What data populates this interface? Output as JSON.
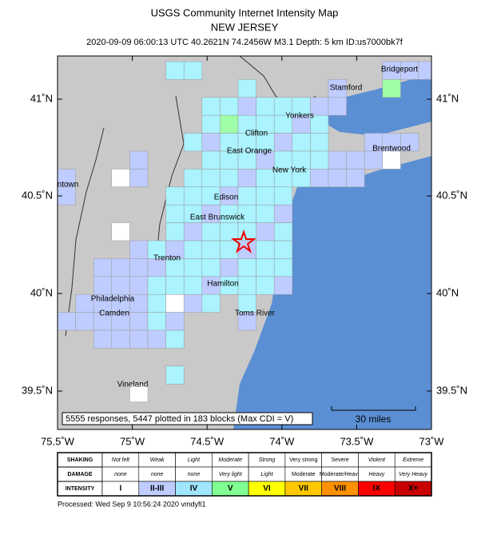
{
  "header": {
    "title": "USGS Community Internet Intensity Map",
    "region": "NEW JERSEY",
    "event": "2020-09-09 06:00:13 UTC 40.2621N 74.2456W M3.1 Depth: 5 km ID:us7000bk7f"
  },
  "map": {
    "lon_labels": [
      "75.5˚W",
      "75˚W",
      "74.5˚W",
      "74˚W",
      "73.5˚W",
      "73˚W"
    ],
    "lat_labels": [
      "41˚N",
      "40.5˚N",
      "40˚N",
      "39.5˚N"
    ],
    "places": [
      "Bridgeport",
      "Stamford",
      "Yonkers",
      "Clifton",
      "East Orange",
      "Brentwood",
      "New York",
      "ntown",
      "Edison",
      "East Brunswick",
      "Trenton",
      "Hamilton",
      "Philadelphia",
      "Camden",
      "Toms River",
      "Vineland"
    ],
    "summary": "5555 responses, 5447 plotted in 183 blocks (Max CDI = V)",
    "scale_label": "30 miles"
  },
  "legend": {
    "rows": [
      {
        "label": "SHAKING",
        "cells": [
          "Not felt",
          "Weak",
          "Light",
          "Moderate",
          "Strong",
          "Very strong",
          "Severe",
          "Violent",
          "Extreme"
        ]
      },
      {
        "label": "DAMAGE",
        "cells": [
          "none",
          "none",
          "none",
          "Very light",
          "Light",
          "Moderate",
          "Moderate/Heavy",
          "Heavy",
          "Very Heavy"
        ]
      },
      {
        "label": "INTENSITY",
        "cells": [
          "I",
          "II-III",
          "IV",
          "V",
          "VI",
          "VII",
          "VIII",
          "IX",
          "X+"
        ]
      }
    ]
  },
  "footer": "Processed: Wed Sep  9 10:56:24 2020 vmdyfi1"
}
